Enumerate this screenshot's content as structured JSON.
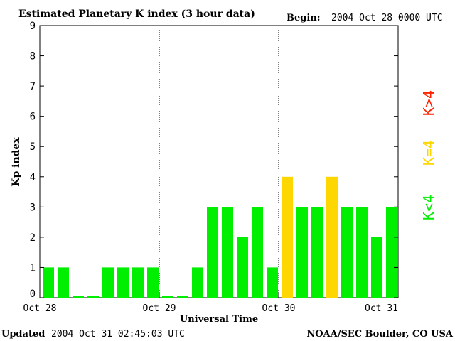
{
  "chart_data": {
    "type": "bar",
    "title": "Estimated Planetary K index (3 hour data)",
    "begin_label": "Begin:",
    "begin_value": "2004 Oct 28 0000 UTC",
    "ylabel": "Kp index",
    "xlabel": "Universal Time",
    "ylim": [
      0,
      9
    ],
    "yticks": [
      "0",
      "1",
      "2",
      "3",
      "4",
      "5",
      "6",
      "7",
      "8",
      "9"
    ],
    "xticks": [
      "Oct 28",
      "Oct 29",
      "Oct 30",
      "Oct 31"
    ],
    "values": [
      1,
      1,
      0,
      0,
      1,
      1,
      1,
      1,
      0,
      0,
      1,
      3,
      3,
      2,
      3,
      1,
      4,
      3,
      3,
      4,
      3,
      3,
      2,
      3
    ],
    "colors": {
      "low": "#00ee00",
      "equal": "#ffd700",
      "high": "#ff2200"
    },
    "legend": [
      {
        "label": "K>4",
        "color": "#ff2200"
      },
      {
        "label": "K=4",
        "color": "#ffd700"
      },
      {
        "label": "K<4",
        "color": "#00ee00"
      }
    ],
    "updated_label": "Updated",
    "updated_value": "2004 Oct 31 02:45:03 UTC",
    "source": "NOAA/SEC Boulder, CO USA"
  }
}
